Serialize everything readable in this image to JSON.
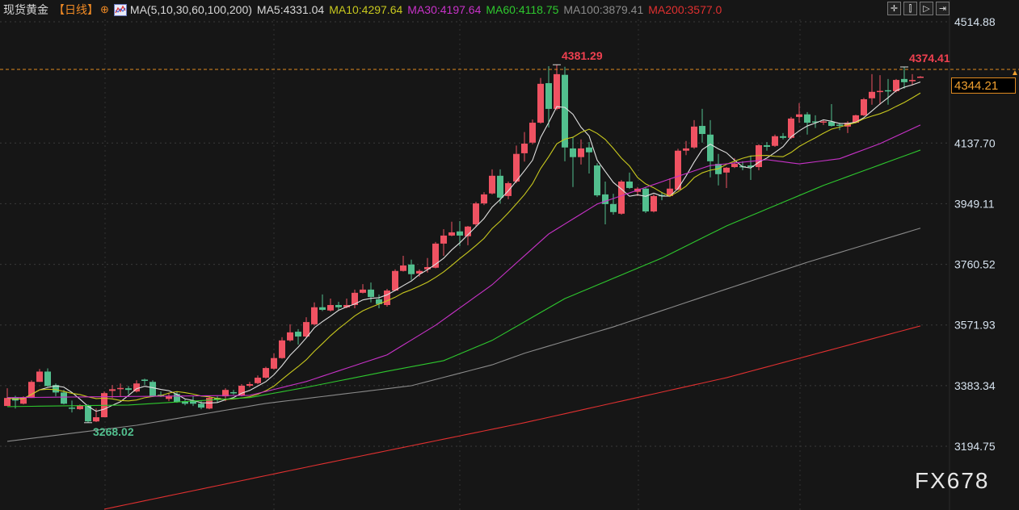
{
  "header": {
    "title": "现货黄金",
    "period": "【日线】",
    "indicator": "MA(5,10,30,60,100,200)",
    "ma_values": [
      {
        "label": "MA5:4331.04",
        "color": "#d8d8d8"
      },
      {
        "label": "MA10:4297.64",
        "color": "#c8c81e"
      },
      {
        "label": "MA30:4197.64",
        "color": "#c832c8"
      },
      {
        "label": "MA60:4118.75",
        "color": "#2ec82e"
      },
      {
        "label": "MA100:3879.41",
        "color": "#8a8a8a"
      },
      {
        "label": "MA200:3577.0",
        "color": "#e03030"
      }
    ]
  },
  "toolbar": {
    "icons": [
      "crosshair-icon",
      "zoom-range-icon",
      "play-replay-icon",
      "exit-icon"
    ]
  },
  "current_price": "4344.21",
  "watermark": "FX678",
  "colors": {
    "up": "#ef5262",
    "down": "#52bf8e",
    "background": "#161616",
    "current_line": "#e08a20"
  },
  "chart_data": {
    "type": "candlestick",
    "yaxis": {
      "ticks": [
        "4514.88",
        "4137.70",
        "3949.11",
        "3760.52",
        "3571.93",
        "3383.34",
        "3194.75"
      ],
      "ylim": [
        3194.75,
        4514.88
      ],
      "position": "right"
    },
    "grid": true,
    "annotations": [
      {
        "text": "4381.29",
        "index": 68,
        "kind": "high",
        "color": "#ef4050"
      },
      {
        "text": "4374.41",
        "index": 111,
        "kind": "high",
        "color": "#ef4050"
      },
      {
        "text": "3268.02",
        "index": 10,
        "kind": "low",
        "color": "#52bf8e"
      }
    ],
    "candles_ohlc": [
      [
        3320,
        3375,
        3320,
        3345
      ],
      [
        3347,
        3352,
        3312,
        3337
      ],
      [
        3327,
        3350,
        3325,
        3347
      ],
      [
        3345,
        3400,
        3345,
        3395
      ],
      [
        3395,
        3435,
        3395,
        3427
      ],
      [
        3427,
        3437,
        3380,
        3382
      ],
      [
        3385,
        3390,
        3350,
        3362
      ],
      [
        3362,
        3370,
        3325,
        3327
      ],
      [
        3315,
        3337,
        3300,
        3312
      ],
      [
        3310,
        3325,
        3308,
        3322
      ],
      [
        3322,
        3325,
        3268.02,
        3272
      ],
      [
        3272,
        3312,
        3270,
        3285
      ],
      [
        3285,
        3365,
        3285,
        3360
      ],
      [
        3367,
        3385,
        3345,
        3372
      ],
      [
        3373,
        3390,
        3350,
        3376
      ],
      [
        3375,
        3382,
        3357,
        3370
      ],
      [
        3365,
        3400,
        3362,
        3390
      ],
      [
        3402,
        3405,
        3385,
        3398
      ],
      [
        3395,
        3400,
        3348,
        3350
      ],
      [
        3355,
        3365,
        3348,
        3350
      ],
      [
        3342,
        3360,
        3335,
        3350
      ],
      [
        3357,
        3365,
        3330,
        3332
      ],
      [
        3335,
        3340,
        3322,
        3327
      ],
      [
        3337,
        3352,
        3320,
        3327
      ],
      [
        3327,
        3335,
        3310,
        3315
      ],
      [
        3312,
        3350,
        3310,
        3345
      ],
      [
        3345,
        3350,
        3330,
        3340
      ],
      [
        3350,
        3375,
        3335,
        3370
      ],
      [
        3363,
        3370,
        3355,
        3361
      ],
      [
        3353,
        3388,
        3350,
        3383
      ],
      [
        3383,
        3395,
        3378,
        3388
      ],
      [
        3391,
        3415,
        3388,
        3408
      ],
      [
        3408,
        3442,
        3405,
        3438
      ],
      [
        3436,
        3484,
        3433,
        3469
      ],
      [
        3469,
        3534,
        3467,
        3524
      ],
      [
        3524,
        3574,
        3520,
        3549
      ],
      [
        3551,
        3559,
        3511,
        3536
      ],
      [
        3536,
        3596,
        3533,
        3581
      ],
      [
        3574,
        3642,
        3570,
        3627
      ],
      [
        3627,
        3667,
        3615,
        3619
      ],
      [
        3617,
        3654,
        3614,
        3634
      ],
      [
        3634,
        3644,
        3619,
        3627
      ],
      [
        3627,
        3654,
        3624,
        3634
      ],
      [
        3634,
        3682,
        3624,
        3672
      ],
      [
        3672,
        3699,
        3670,
        3682
      ],
      [
        3682,
        3704,
        3642,
        3659
      ],
      [
        3652,
        3667,
        3624,
        3637
      ],
      [
        3634,
        3684,
        3629,
        3679
      ],
      [
        3679,
        3745,
        3677,
        3740
      ],
      [
        3740,
        3787,
        3738,
        3757
      ],
      [
        3760,
        3775,
        3712,
        3730
      ],
      [
        3732,
        3745,
        3722,
        3740
      ],
      [
        3745,
        3780,
        3735,
        3752
      ],
      [
        3750,
        3830,
        3748,
        3825
      ],
      [
        3825,
        3870,
        3787,
        3850
      ],
      [
        3850,
        3893,
        3848,
        3860
      ],
      [
        3863,
        3895,
        3817,
        3850
      ],
      [
        3848,
        3880,
        3820,
        3878
      ],
      [
        3885,
        3955,
        3877,
        3950
      ],
      [
        3950,
        3985,
        3945,
        3978
      ],
      [
        3981,
        4056,
        3978,
        4036
      ],
      [
        4036,
        4056,
        3950,
        3968
      ],
      [
        3973,
        4018,
        3963,
        4013
      ],
      [
        4018,
        4130,
        4013,
        4104
      ],
      [
        4106,
        4172,
        4080,
        4136
      ],
      [
        4139,
        4211,
        4134,
        4201
      ],
      [
        4201,
        4340,
        4198,
        4322
      ],
      [
        4324,
        4377,
        4186,
        4244
      ],
      [
        4244,
        4381.29,
        4240,
        4352
      ],
      [
        4350,
        4375,
        4081,
        4124
      ],
      [
        4121,
        4156,
        4001,
        4094
      ],
      [
        4094,
        4149,
        4071,
        4121
      ],
      [
        4124,
        4141,
        4043,
        4109
      ],
      [
        4068,
        4075,
        3970,
        3975
      ],
      [
        3978,
        4018,
        3885,
        3948
      ],
      [
        3948,
        3980,
        3915,
        3923
      ],
      [
        3918,
        4023,
        3915,
        4018
      ],
      [
        4018,
        4046,
        3995,
        3998
      ],
      [
        3986,
        4001,
        3973,
        3996
      ],
      [
        3996,
        4000,
        3920,
        3925
      ],
      [
        3925,
        3978,
        3922,
        3973
      ],
      [
        3976,
        3985,
        3960,
        3973
      ],
      [
        3973,
        4028,
        3970,
        3996
      ],
      [
        3993,
        4120,
        3990,
        4114
      ],
      [
        4114,
        4144,
        4100,
        4121
      ],
      [
        4124,
        4209,
        4120,
        4189
      ],
      [
        4191,
        4244,
        4139,
        4166
      ],
      [
        4164,
        4209,
        4031,
        4081
      ],
      [
        4073,
        4104,
        4006,
        4041
      ],
      [
        4046,
        4063,
        3998,
        4061
      ],
      [
        4063,
        4091,
        4060,
        4073
      ],
      [
        4066,
        4081,
        4053,
        4063
      ],
      [
        4068,
        4099,
        4023,
        4063
      ],
      [
        4063,
        4134,
        4053,
        4131
      ],
      [
        4131,
        4141,
        4114,
        4126
      ],
      [
        4129,
        4164,
        4126,
        4159
      ],
      [
        4159,
        4169,
        4149,
        4154
      ],
      [
        4154,
        4219,
        4150,
        4214
      ],
      [
        4219,
        4262,
        4201,
        4227
      ],
      [
        4227,
        4234,
        4164,
        4201
      ],
      [
        4205,
        4224,
        4185,
        4203
      ],
      [
        4202,
        4211,
        4194,
        4205
      ],
      [
        4204,
        4259,
        4189,
        4191
      ],
      [
        4195,
        4201,
        4178,
        4193
      ],
      [
        4189,
        4206,
        4169,
        4201
      ],
      [
        4201,
        4226,
        4199,
        4224
      ],
      [
        4224,
        4278,
        4222,
        4274
      ],
      [
        4277,
        4352,
        4257,
        4297
      ],
      [
        4297,
        4349,
        4257,
        4300
      ],
      [
        4302,
        4337,
        4257,
        4299
      ],
      [
        4299,
        4337,
        4295,
        4334
      ],
      [
        4337,
        4374.41,
        4307,
        4327
      ],
      [
        4330,
        4352,
        4317,
        4334
      ],
      [
        4341,
        4346,
        4340,
        4344.21
      ]
    ],
    "moving_averages": [
      {
        "name": "MA5",
        "period": 5,
        "color": "#e0e0e0",
        "computed": true
      },
      {
        "name": "MA10",
        "period": 10,
        "color": "#c8c81e",
        "computed": true
      },
      {
        "name": "MA30",
        "period": 30,
        "color": "#c832c8",
        "points": [
          [
            0,
            3346
          ],
          [
            30,
            3353
          ],
          [
            37,
            3396
          ],
          [
            47,
            3479
          ],
          [
            53,
            3571
          ],
          [
            60,
            3697
          ],
          [
            67,
            3855
          ],
          [
            73,
            3948
          ],
          [
            82,
            4026
          ],
          [
            87,
            4068
          ],
          [
            94,
            4086
          ],
          [
            98,
            4073
          ],
          [
            103,
            4089
          ],
          [
            108,
            4136
          ],
          [
            113,
            4194
          ]
        ]
      },
      {
        "name": "MA60",
        "period": 60,
        "color": "#2ec82e",
        "points": [
          [
            0,
            3318
          ],
          [
            15,
            3323
          ],
          [
            30,
            3346
          ],
          [
            37,
            3378
          ],
          [
            47,
            3428
          ],
          [
            54,
            3461
          ],
          [
            60,
            3524
          ],
          [
            69,
            3654
          ],
          [
            81,
            3780
          ],
          [
            89,
            3880
          ],
          [
            101,
            4006
          ],
          [
            113,
            4116
          ]
        ]
      },
      {
        "name": "MA100",
        "period": 100,
        "color": "#8a8a8a",
        "points": [
          [
            0,
            3210
          ],
          [
            16,
            3260
          ],
          [
            32,
            3328
          ],
          [
            50,
            3383
          ],
          [
            60,
            3448
          ],
          [
            64,
            3484
          ],
          [
            75,
            3566
          ],
          [
            87,
            3667
          ],
          [
            99,
            3767
          ],
          [
            113,
            3873
          ]
        ]
      },
      {
        "name": "MA200",
        "period": 200,
        "color": "#e03030",
        "points": [
          [
            12,
            2999
          ],
          [
            39,
            3140
          ],
          [
            64,
            3268
          ],
          [
            89,
            3408
          ],
          [
            113,
            3569
          ]
        ]
      }
    ]
  }
}
